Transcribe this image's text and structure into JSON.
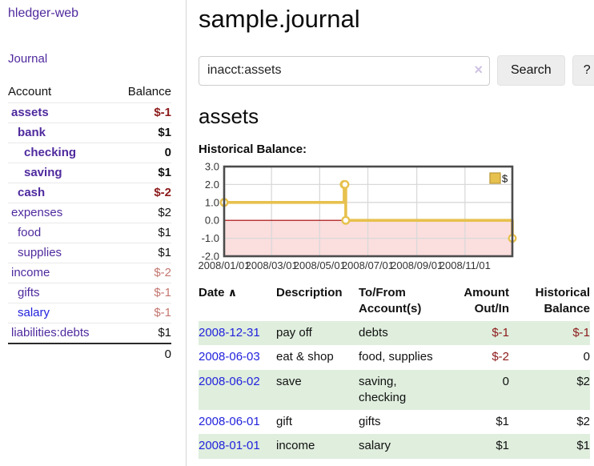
{
  "brand": "hledger-web",
  "nav": {
    "journal": "Journal"
  },
  "sidebar": {
    "headers": {
      "account": "Account",
      "balance": "Balance"
    },
    "accounts": [
      {
        "name": "assets",
        "balance": "$-1"
      },
      {
        "name": "bank",
        "balance": "$1"
      },
      {
        "name": "checking",
        "balance": "0"
      },
      {
        "name": "saving",
        "balance": "$1"
      },
      {
        "name": "cash",
        "balance": "$-2"
      },
      {
        "name": "expenses",
        "balance": "$2"
      },
      {
        "name": "food",
        "balance": "$1"
      },
      {
        "name": "supplies",
        "balance": "$1"
      },
      {
        "name": "income",
        "balance": "$-2"
      },
      {
        "name": "gifts",
        "balance": "$-1"
      },
      {
        "name": "salary",
        "balance": "$-1"
      },
      {
        "name": "liabilities:debts",
        "balance": "$1"
      }
    ],
    "total": "0"
  },
  "header": {
    "title": "sample.journal"
  },
  "search": {
    "value": "inacct:assets",
    "clear_icon": "×",
    "search_button": "Search",
    "help_button": "?"
  },
  "account_section": {
    "title": "assets",
    "chart_heading": "Historical Balance:"
  },
  "chart_data": {
    "type": "line",
    "step": true,
    "title": "Historical Balance:",
    "series": [
      {
        "name": "$",
        "points": [
          [
            "2008-01-01",
            1
          ],
          [
            "2008-06-01",
            2
          ],
          [
            "2008-06-02",
            2
          ],
          [
            "2008-06-03",
            0
          ],
          [
            "2008-12-31",
            -1
          ]
        ]
      }
    ],
    "ylim": [
      -2,
      3
    ],
    "yticks": [
      "3.0",
      "2.0",
      "1.0",
      "0.0",
      "-1.0",
      "-2.0"
    ],
    "xticks": [
      "2008/01/01",
      "2008/03/01",
      "2008/05/01",
      "2008/07/01",
      "2008/09/01",
      "2008/11/01"
    ],
    "x_range": [
      "2008-01-01",
      "2008-12-31"
    ],
    "legend": "$",
    "legend_position": "top-right",
    "line_color": "#e7c14e",
    "marker_fill": "#ffffff",
    "negative_fill": "#fbdede",
    "zero_line_color": "#a40000",
    "grid_color": "#d9d9d9",
    "border_color": "#4c4c4c",
    "grid": true
  },
  "register": {
    "headers": {
      "date": "Date",
      "description": "Description",
      "accounts": "To/From Account(s)",
      "amount": "Amount Out/In",
      "balance": "Historical Balance"
    },
    "sort_icon": "∧",
    "rows": [
      {
        "date": "2008-12-31",
        "description": "pay off",
        "accounts": "debts",
        "amount": "$-1",
        "balance": "$-1"
      },
      {
        "date": "2008-06-03",
        "description": "eat & shop",
        "accounts": "food, supplies",
        "amount": "$-2",
        "balance": "0"
      },
      {
        "date": "2008-06-02",
        "description": "save",
        "accounts": "saving, checking",
        "amount": "0",
        "balance": "$2"
      },
      {
        "date": "2008-06-01",
        "description": "gift",
        "accounts": "gifts",
        "amount": "$1",
        "balance": "$2"
      },
      {
        "date": "2008-01-01",
        "description": "income",
        "accounts": "salary",
        "amount": "$1",
        "balance": "$1"
      }
    ]
  }
}
